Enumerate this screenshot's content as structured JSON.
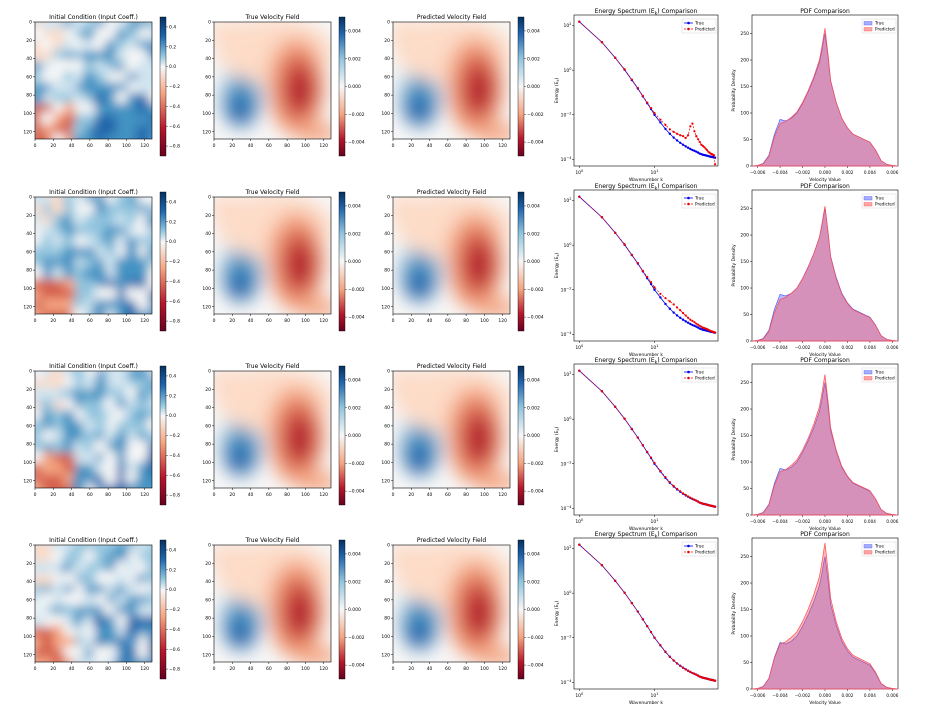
{
  "figure": {
    "rows": 4,
    "colormap": {
      "neg": "#67001f",
      "mid": "#f7f7f7",
      "pos": "#053061"
    }
  },
  "chart_data": [
    {
      "type": "heatmap",
      "panel": "initial-condition",
      "title": "Initial Condition (Input Coeff.)",
      "xticks": [
        "0",
        "20",
        "40",
        "60",
        "80",
        "100",
        "120"
      ],
      "yticks": [
        "0",
        "20",
        "40",
        "60",
        "80",
        "100",
        "120"
      ],
      "xlim": [
        0,
        128
      ],
      "ylim": [
        0,
        128
      ],
      "colorbar": {
        "range": [
          -0.9,
          0.5
        ],
        "ticks": [
          "0.4",
          "0.2",
          "0.0",
          "−0.2",
          "−0.4",
          "−0.6",
          "−0.8"
        ],
        "tick_values": [
          0.4,
          0.2,
          0.0,
          -0.2,
          -0.4,
          -0.6,
          -0.8
        ]
      }
    },
    {
      "type": "heatmap",
      "panel": "true-velocity-field",
      "title": "True Velocity Field",
      "xticks": [
        "0",
        "20",
        "40",
        "60",
        "80",
        "100",
        "120"
      ],
      "yticks": [
        "0",
        "20",
        "40",
        "60",
        "80",
        "100",
        "120"
      ],
      "xlim": [
        0,
        128
      ],
      "ylim": [
        0,
        128
      ],
      "colorbar": {
        "range": [
          -0.005,
          0.005
        ],
        "ticks": [
          "0.004",
          "0.002",
          "0.000",
          "−0.002",
          "−0.004"
        ],
        "tick_values": [
          0.004,
          0.002,
          0.0,
          -0.002,
          -0.004
        ]
      }
    },
    {
      "type": "heatmap",
      "panel": "predicted-velocity-field",
      "title": "Predicted Velocity Field",
      "xticks": [
        "0",
        "20",
        "40",
        "60",
        "80",
        "100",
        "120"
      ],
      "yticks": [
        "0",
        "20",
        "40",
        "60",
        "80",
        "100",
        "120"
      ],
      "xlim": [
        0,
        128
      ],
      "ylim": [
        0,
        128
      ],
      "colorbar": {
        "range": [
          -0.005,
          0.005
        ],
        "ticks": [
          "0.004",
          "0.002",
          "0.000",
          "−0.002",
          "−0.004"
        ],
        "tick_values": [
          0.004,
          0.002,
          0.0,
          -0.002,
          -0.004
        ]
      }
    },
    {
      "type": "line",
      "panel": "energy-spectrum",
      "title": "Energy Spectrum (E",
      "title_sub": "k",
      "title_end": ") Comparison",
      "xlabel": "Wavenumber k",
      "ylabel": "Energy (E",
      "ylabel_sub": "k",
      "ylabel_end": ")",
      "xscale": "log",
      "yscale": "log",
      "xlim": [
        0.85,
        70
      ],
      "ylim": [
        5e-05,
        300
      ],
      "xticks": [
        {
          "value": 1,
          "base": "10",
          "exp": "0"
        },
        {
          "value": 10,
          "base": "10",
          "exp": "1"
        }
      ],
      "yticks": [
        {
          "value": 100,
          "base": "10",
          "exp": "2"
        },
        {
          "value": 1,
          "base": "10",
          "exp": "0"
        },
        {
          "value": 0.01,
          "base": "10",
          "exp": "−2"
        },
        {
          "value": 0.0001,
          "base": "10",
          "exp": "−4"
        }
      ],
      "legend": {
        "placement": "top-right",
        "entries": [
          "True",
          "Predicted"
        ]
      },
      "x": [
        1,
        2,
        3,
        4,
        5,
        6,
        7,
        8,
        9,
        10,
        12,
        14,
        16,
        18,
        20,
        22,
        24,
        26,
        28,
        30,
        32,
        34,
        36,
        38,
        40,
        42,
        44,
        46,
        48,
        50,
        52,
        54,
        56,
        58,
        60,
        62,
        64
      ],
      "series": [
        {
          "name": "True",
          "color": "#0000ee",
          "values": [
            150,
            18,
            3.6,
            1.05,
            0.36,
            0.15,
            0.067,
            0.033,
            0.018,
            0.01,
            0.0045,
            0.0023,
            0.0014,
            0.00095,
            0.0007,
            0.00055,
            0.00045,
            0.00038,
            0.00033,
            0.00029,
            0.00026,
            0.00024,
            0.00022,
            0.0002,
            0.00018,
            0.00017,
            0.00016,
            0.000155,
            0.00015,
            0.000145,
            0.00014,
            0.000135,
            0.00013,
            0.000128,
            0.000125,
            0.00012,
            0.000118
          ]
        }
      ],
      "predicted_by_row": [
        [
          150,
          18,
          3.6,
          1.1,
          0.38,
          0.16,
          0.07,
          0.035,
          0.02,
          0.012,
          0.006,
          0.0035,
          0.0022,
          0.0017,
          0.0014,
          0.0012,
          0.0011,
          0.0009,
          0.0012,
          0.003,
          0.004,
          0.0018,
          0.0011,
          0.0008,
          0.0006,
          0.00045,
          0.0004,
          0.00035,
          0.0003,
          0.00026,
          0.00022,
          0.0002,
          0.00018,
          0.00017,
          0.00016,
          0.00015,
          6e-05
        ],
        [
          150,
          18,
          3.6,
          1.1,
          0.37,
          0.16,
          0.07,
          0.038,
          0.022,
          0.013,
          0.0065,
          0.0042,
          0.003,
          0.0022,
          0.0016,
          0.0012,
          0.0009,
          0.0007,
          0.00055,
          0.00045,
          0.0004,
          0.00035,
          0.0003,
          0.00027,
          0.00024,
          0.00022,
          0.0002,
          0.00019,
          0.00018,
          0.00017,
          0.00016,
          0.00015,
          0.00014,
          0.000135,
          0.00013,
          0.000125,
          0.00012
        ],
        [
          150,
          18,
          3.6,
          1.05,
          0.37,
          0.15,
          0.068,
          0.034,
          0.019,
          0.011,
          0.0048,
          0.0025,
          0.0015,
          0.001,
          0.00075,
          0.00058,
          0.00047,
          0.0004,
          0.00034,
          0.0003,
          0.00027,
          0.00024,
          0.00022,
          0.0002,
          0.00018,
          0.00017,
          0.00016,
          0.000155,
          0.00015,
          0.000145,
          0.00014,
          0.000135,
          0.00013,
          0.000128,
          0.000125,
          0.00012,
          0.000118
        ],
        [
          150,
          18,
          3.6,
          1.05,
          0.36,
          0.15,
          0.067,
          0.033,
          0.018,
          0.01,
          0.0046,
          0.0024,
          0.0014,
          0.00097,
          0.0007,
          0.00055,
          0.00045,
          0.00038,
          0.00033,
          0.00029,
          0.00026,
          0.00024,
          0.00022,
          0.0002,
          0.00018,
          0.00017,
          0.00016,
          0.000155,
          0.00015,
          0.000145,
          0.00014,
          0.000135,
          0.00013,
          0.000128,
          0.000125,
          0.00012,
          0.000118
        ]
      ],
      "predicted_color": "#ee0000"
    },
    {
      "type": "area",
      "panel": "pdf-comparison",
      "title": "PDF Comparison",
      "xlabel": "Velocity Value",
      "ylabel": "Probability Density",
      "xlim": [
        -0.0065,
        0.0065
      ],
      "ylim": [
        0,
        285
      ],
      "xticks": [
        {
          "value": -0.006,
          "label": "−0.006"
        },
        {
          "value": -0.004,
          "label": "−0.004"
        },
        {
          "value": -0.002,
          "label": "−0.002"
        },
        {
          "value": 0.0,
          "label": "0.000"
        },
        {
          "value": 0.002,
          "label": "0.002"
        },
        {
          "value": 0.004,
          "label": "0.004"
        },
        {
          "value": 0.006,
          "label": "0.006"
        }
      ],
      "yticks": [
        {
          "value": 0,
          "label": "0"
        },
        {
          "value": 50,
          "label": "50"
        },
        {
          "value": 100,
          "label": "100"
        },
        {
          "value": 150,
          "label": "150"
        },
        {
          "value": 200,
          "label": "200"
        },
        {
          "value": 250,
          "label": "250"
        }
      ],
      "legend": {
        "placement": "top-right",
        "entries": [
          "True",
          "Predicted"
        ]
      },
      "x": [
        -0.0065,
        -0.006,
        -0.0055,
        -0.005,
        -0.0045,
        -0.004,
        -0.0035,
        -0.003,
        -0.0025,
        -0.002,
        -0.0015,
        -0.001,
        -0.0005,
        -0.0003,
        -0.0001,
        0.0,
        0.0001,
        0.0003,
        0.0005,
        0.001,
        0.0015,
        0.002,
        0.0025,
        0.003,
        0.0035,
        0.004,
        0.0045,
        0.005,
        0.0055,
        0.006,
        0.0065
      ],
      "series": [
        {
          "name": "True",
          "color": "#4f5bff",
          "values": [
            0,
            1,
            5,
            20,
            60,
            88,
            85,
            90,
            100,
            118,
            140,
            165,
            195,
            215,
            240,
            250,
            235,
            200,
            160,
            120,
            90,
            72,
            60,
            55,
            50,
            45,
            30,
            10,
            3,
            1,
            0
          ]
        },
        {
          "name": "Predicted",
          "color": "#ff4f4f",
          "values": [
            0,
            1,
            4,
            18,
            55,
            80,
            84,
            92,
            102,
            120,
            142,
            168,
            200,
            222,
            248,
            260,
            242,
            205,
            162,
            120,
            90,
            72,
            60,
            55,
            50,
            45,
            30,
            10,
            3,
            1,
            0
          ]
        }
      ]
    }
  ]
}
